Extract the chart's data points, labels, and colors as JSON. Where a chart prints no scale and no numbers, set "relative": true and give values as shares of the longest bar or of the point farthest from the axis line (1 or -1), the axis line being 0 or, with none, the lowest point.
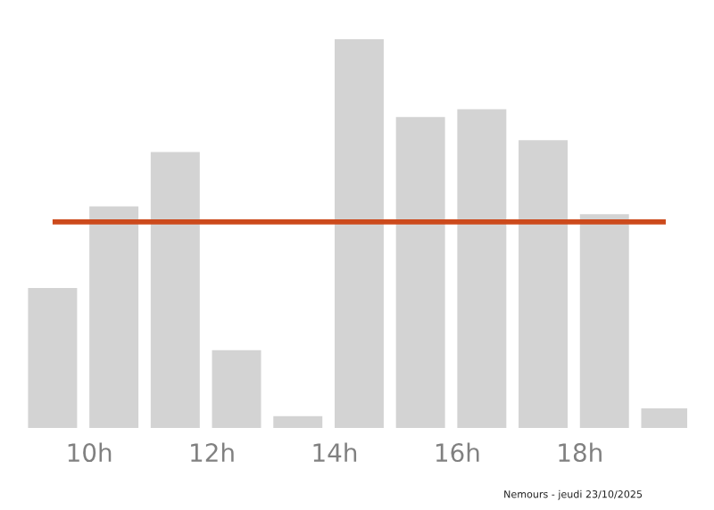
{
  "chart_data": {
    "type": "bar",
    "relative": true,
    "x": [
      9.4,
      10.4,
      11.4,
      12.4,
      13.4,
      14.4,
      15.4,
      16.4,
      17.4,
      18.4,
      19.4
    ],
    "values": [
      0.36,
      0.57,
      0.71,
      0.2,
      0.03,
      1.0,
      0.8,
      0.82,
      0.74,
      0.55,
      0.05
    ],
    "color": "#d3d3d3",
    "xlim": [
      8.95,
      19.75
    ],
    "xticks": [
      {
        "value": 10,
        "label": "10h"
      },
      {
        "value": 12,
        "label": "12h"
      },
      {
        "value": 14,
        "label": "14h"
      },
      {
        "value": 16,
        "label": "16h"
      },
      {
        "value": 18,
        "label": "18h"
      }
    ],
    "ref_lines": [
      {
        "axis": "y",
        "value": 0.53,
        "label": null,
        "color": "#cc4a1c"
      }
    ],
    "annotations": [
      "Nemours - jeudi 23/10/2025"
    ],
    "grid": false,
    "legend": false
  }
}
